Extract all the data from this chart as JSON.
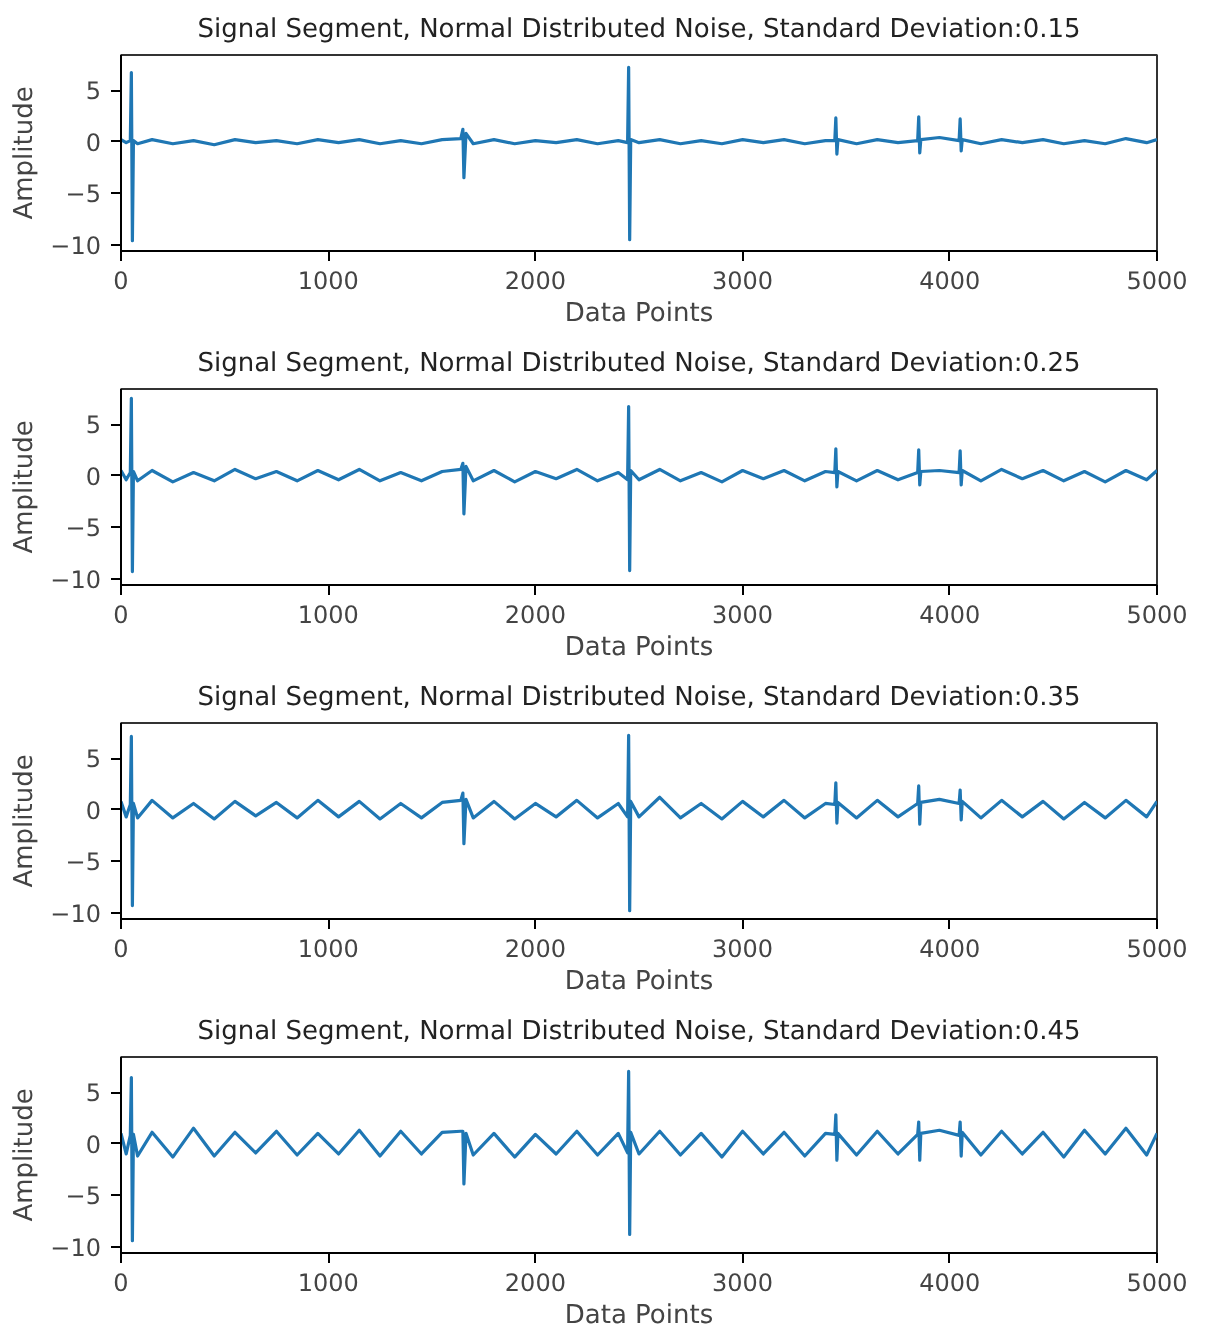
{
  "chart_data": [
    {
      "type": "line",
      "title": "Signal Segment, Normal Distributed Noise, Standard Deviation:0.15",
      "xlabel": "Data Points",
      "ylabel": "Amplitude",
      "color": "#1f77b4",
      "xlim": [
        0,
        5000
      ],
      "ylim": [
        -10.6,
        8.4
      ],
      "xticks": [
        0,
        1000,
        2000,
        3000,
        4000,
        5000
      ],
      "yticks": [
        -10,
        -5,
        0,
        5
      ],
      "grid": false,
      "x": [
        0,
        25,
        45,
        50,
        55,
        60,
        80,
        150,
        250,
        350,
        450,
        550,
        650,
        750,
        850,
        950,
        1050,
        1150,
        1250,
        1350,
        1450,
        1550,
        1640,
        1650,
        1655,
        1665,
        1700,
        1800,
        1900,
        2000,
        2100,
        2200,
        2300,
        2400,
        2445,
        2450,
        2455,
        2460,
        2500,
        2600,
        2700,
        2800,
        2900,
        3000,
        3100,
        3200,
        3300,
        3400,
        3445,
        3450,
        3455,
        3460,
        3550,
        3650,
        3750,
        3845,
        3850,
        3855,
        3860,
        3950,
        4045,
        4050,
        4055,
        4060,
        4150,
        4250,
        4350,
        4450,
        4550,
        4650,
        4750,
        4850,
        4950,
        5000
      ],
      "values": [
        0.2,
        -0.1,
        0.1,
        6.7,
        -9.6,
        0.1,
        -0.2,
        0.2,
        -0.2,
        0.1,
        -0.3,
        0.2,
        -0.1,
        0.1,
        -0.2,
        0.2,
        -0.1,
        0.2,
        -0.2,
        0.1,
        -0.2,
        0.2,
        0.3,
        1.2,
        -3.5,
        0.8,
        -0.2,
        0.2,
        -0.2,
        0.1,
        -0.1,
        0.2,
        -0.2,
        0.1,
        -0.1,
        7.2,
        -9.5,
        0.2,
        -0.1,
        0.2,
        -0.2,
        0.1,
        -0.2,
        0.2,
        -0.1,
        0.2,
        -0.2,
        0.1,
        0.1,
        2.3,
        -1.2,
        0.2,
        -0.2,
        0.2,
        -0.1,
        0.1,
        2.4,
        -1.1,
        0.2,
        0.4,
        0.1,
        2.2,
        -0.9,
        0.2,
        -0.2,
        0.2,
        -0.1,
        0.2,
        -0.2,
        0.1,
        -0.2,
        0.3,
        -0.1,
        0.2
      ]
    },
    {
      "type": "line",
      "title": "Signal Segment, Normal Distributed Noise, Standard Deviation:0.25",
      "xlabel": "Data Points",
      "ylabel": "Amplitude",
      "color": "#1f77b4",
      "xlim": [
        0,
        5000
      ],
      "ylim": [
        -10.6,
        8.4
      ],
      "xticks": [
        0,
        1000,
        2000,
        3000,
        4000,
        5000
      ],
      "yticks": [
        -10,
        -5,
        0,
        5
      ],
      "grid": false,
      "x": [
        0,
        25,
        45,
        50,
        55,
        60,
        80,
        150,
        250,
        350,
        450,
        550,
        650,
        750,
        850,
        950,
        1050,
        1150,
        1250,
        1350,
        1450,
        1550,
        1640,
        1650,
        1655,
        1665,
        1700,
        1800,
        1900,
        2000,
        2100,
        2200,
        2300,
        2400,
        2445,
        2450,
        2455,
        2460,
        2500,
        2600,
        2700,
        2800,
        2900,
        3000,
        3100,
        3200,
        3300,
        3400,
        3445,
        3450,
        3455,
        3460,
        3550,
        3650,
        3750,
        3845,
        3850,
        3855,
        3860,
        3950,
        4045,
        4050,
        4055,
        4060,
        4150,
        4250,
        4350,
        4450,
        4550,
        4650,
        4750,
        4850,
        4950,
        5000
      ],
      "values": [
        0.5,
        -0.4,
        0.3,
        7.5,
        -9.3,
        0.4,
        -0.5,
        0.5,
        -0.6,
        0.3,
        -0.5,
        0.6,
        -0.3,
        0.4,
        -0.5,
        0.5,
        -0.4,
        0.6,
        -0.5,
        0.3,
        -0.5,
        0.4,
        0.6,
        1.2,
        -3.7,
        0.9,
        -0.5,
        0.5,
        -0.6,
        0.4,
        -0.3,
        0.6,
        -0.5,
        0.3,
        -0.4,
        6.7,
        -9.2,
        0.5,
        -0.4,
        0.6,
        -0.5,
        0.3,
        -0.6,
        0.5,
        -0.3,
        0.5,
        -0.5,
        0.4,
        0.3,
        2.6,
        -1.1,
        0.4,
        -0.5,
        0.5,
        -0.4,
        0.3,
        2.5,
        -0.9,
        0.4,
        0.5,
        0.3,
        2.4,
        -0.9,
        0.5,
        -0.5,
        0.6,
        -0.3,
        0.5,
        -0.5,
        0.4,
        -0.6,
        0.5,
        -0.4,
        0.5
      ]
    },
    {
      "type": "line",
      "title": "Signal Segment, Normal Distributed Noise, Standard Deviation:0.35",
      "xlabel": "Data Points",
      "ylabel": "Amplitude",
      "color": "#1f77b4",
      "xlim": [
        0,
        5000
      ],
      "ylim": [
        -10.6,
        8.4
      ],
      "xticks": [
        0,
        1000,
        2000,
        3000,
        4000,
        5000
      ],
      "yticks": [
        -10,
        -5,
        0,
        5
      ],
      "grid": false,
      "x": [
        0,
        25,
        45,
        50,
        55,
        60,
        80,
        150,
        250,
        350,
        450,
        550,
        650,
        750,
        850,
        950,
        1050,
        1150,
        1250,
        1350,
        1450,
        1550,
        1640,
        1650,
        1655,
        1665,
        1700,
        1800,
        1900,
        2000,
        2100,
        2200,
        2300,
        2400,
        2445,
        2450,
        2455,
        2460,
        2500,
        2600,
        2700,
        2800,
        2900,
        3000,
        3100,
        3200,
        3300,
        3400,
        3445,
        3450,
        3455,
        3460,
        3550,
        3650,
        3750,
        3845,
        3850,
        3855,
        3860,
        3950,
        4045,
        4050,
        4055,
        4060,
        4150,
        4250,
        4350,
        4450,
        4550,
        4650,
        4750,
        4850,
        4950,
        5000
      ],
      "values": [
        0.8,
        -0.7,
        0.5,
        7.1,
        -9.3,
        0.6,
        -0.8,
        0.9,
        -0.8,
        0.6,
        -0.9,
        0.8,
        -0.6,
        0.7,
        -0.8,
        0.9,
        -0.7,
        0.8,
        -0.9,
        0.6,
        -0.8,
        0.7,
        0.9,
        1.6,
        -3.3,
        1.0,
        -0.8,
        0.8,
        -0.9,
        0.6,
        -0.7,
        0.9,
        -0.8,
        0.6,
        -0.7,
        7.2,
        -9.8,
        0.8,
        -0.7,
        1.2,
        -0.8,
        0.6,
        -0.9,
        0.8,
        -0.7,
        0.9,
        -0.8,
        0.6,
        0.5,
        2.6,
        -1.3,
        0.7,
        -0.8,
        0.9,
        -0.7,
        0.6,
        2.3,
        -1.4,
        0.7,
        1.0,
        0.6,
        1.9,
        -1.0,
        0.8,
        -0.8,
        0.9,
        -0.7,
        0.8,
        -0.9,
        0.7,
        -0.8,
        0.9,
        -0.7,
        0.8
      ]
    },
    {
      "type": "line",
      "title": "Signal Segment, Normal Distributed Noise, Standard Deviation:0.45",
      "xlabel": "Data Points",
      "ylabel": "Amplitude",
      "color": "#1f77b4",
      "xlim": [
        0,
        5000
      ],
      "ylim": [
        -10.6,
        8.4
      ],
      "xticks": [
        0,
        1000,
        2000,
        3000,
        4000,
        5000
      ],
      "yticks": [
        -10,
        -5,
        0,
        5
      ],
      "grid": false,
      "x": [
        0,
        25,
        45,
        50,
        55,
        60,
        80,
        150,
        250,
        350,
        450,
        550,
        650,
        750,
        850,
        950,
        1050,
        1150,
        1250,
        1350,
        1450,
        1550,
        1640,
        1650,
        1655,
        1665,
        1700,
        1800,
        1900,
        2000,
        2100,
        2200,
        2300,
        2400,
        2445,
        2450,
        2455,
        2460,
        2500,
        2600,
        2700,
        2800,
        2900,
        3000,
        3100,
        3200,
        3300,
        3400,
        3445,
        3450,
        3455,
        3460,
        3550,
        3650,
        3750,
        3845,
        3850,
        3855,
        3860,
        3950,
        4045,
        4050,
        4055,
        4060,
        4150,
        4250,
        4350,
        4450,
        4550,
        4650,
        4750,
        4850,
        4950,
        5000
      ],
      "values": [
        1.0,
        -1.0,
        0.8,
        6.4,
        -9.4,
        0.9,
        -1.2,
        1.1,
        -1.3,
        1.5,
        -1.2,
        1.1,
        -0.9,
        1.2,
        -1.1,
        1.0,
        -1.0,
        1.3,
        -1.2,
        1.2,
        -1.0,
        1.1,
        1.2,
        1.2,
        -3.9,
        1.0,
        -1.1,
        1.0,
        -1.3,
        0.9,
        -1.0,
        1.2,
        -1.1,
        1.0,
        -0.9,
        7.0,
        -8.8,
        1.1,
        -1.0,
        1.2,
        -1.1,
        1.0,
        -1.3,
        1.2,
        -1.0,
        1.1,
        -1.2,
        1.0,
        0.9,
        2.8,
        -1.6,
        1.0,
        -1.1,
        1.2,
        -1.0,
        0.9,
        2.1,
        -1.6,
        1.0,
        1.3,
        0.8,
        2.1,
        -1.2,
        1.1,
        -1.1,
        1.2,
        -1.0,
        1.1,
        -1.3,
        1.3,
        -1.0,
        1.5,
        -1.1,
        1.0
      ]
    }
  ]
}
